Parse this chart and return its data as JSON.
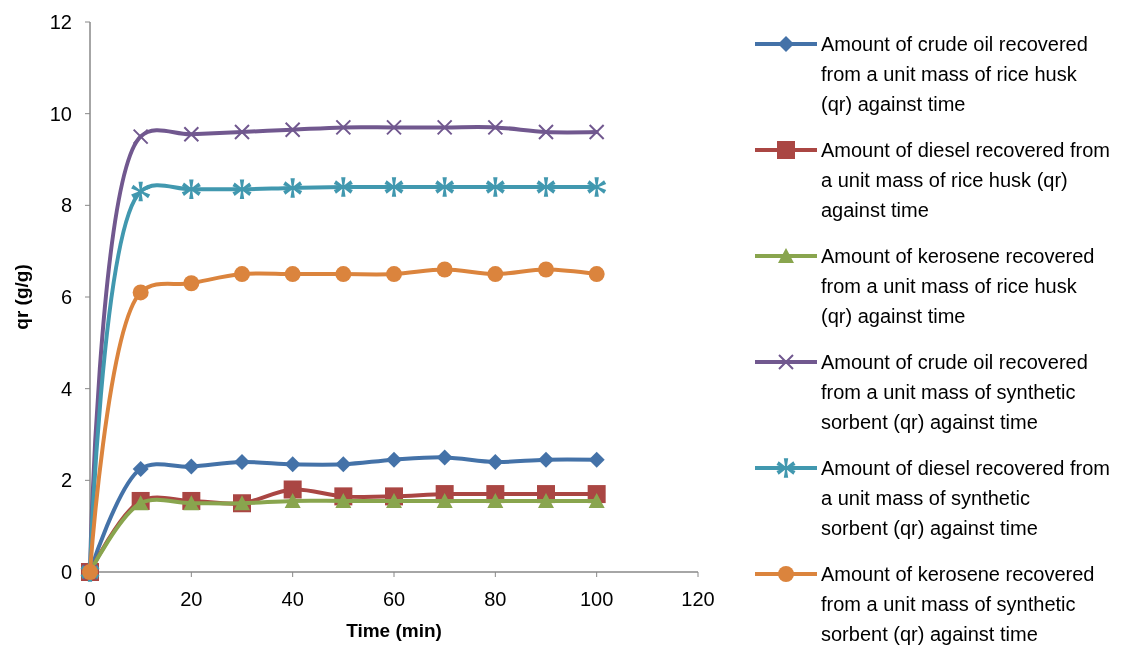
{
  "chart_data": {
    "type": "line",
    "xlabel": "Time (min)",
    "ylabel": "qr (g/g)",
    "x": [
      0,
      10,
      20,
      30,
      40,
      50,
      60,
      70,
      80,
      90,
      100
    ],
    "xlim": [
      0,
      120
    ],
    "xticks": [
      0,
      20,
      40,
      60,
      80,
      100,
      120
    ],
    "ylim": [
      0,
      12
    ],
    "yticks": [
      0,
      2,
      4,
      6,
      8,
      10,
      12
    ],
    "grid": false,
    "legend": "right",
    "series": [
      {
        "name": "Amount of crude oil recovered from a unit mass of rice husk (qr) against time",
        "color": "#4472a8",
        "marker": "diamond",
        "values": [
          0,
          2.25,
          2.3,
          2.4,
          2.35,
          2.35,
          2.45,
          2.5,
          2.4,
          2.45,
          2.45
        ]
      },
      {
        "name": "Amount of diesel recovered from a unit mass of rice husk (qr) against time",
        "color": "#aa4643",
        "marker": "square",
        "values": [
          0,
          1.55,
          1.55,
          1.5,
          1.8,
          1.65,
          1.65,
          1.7,
          1.7,
          1.7,
          1.7
        ]
      },
      {
        "name": "Amount of kerosene recovered from a unit mass of rice husk (qr) against time",
        "color": "#89a54e",
        "marker": "triangle",
        "values": [
          0,
          1.5,
          1.5,
          1.5,
          1.55,
          1.55,
          1.55,
          1.55,
          1.55,
          1.55,
          1.55
        ]
      },
      {
        "name": "Amount of crude oil recovered from a unit mass of synthetic sorbent (qr) against time",
        "color": "#71588f",
        "marker": "cross",
        "values": [
          0,
          9.5,
          9.55,
          9.6,
          9.65,
          9.7,
          9.7,
          9.7,
          9.7,
          9.6,
          9.6
        ]
      },
      {
        "name": "Amount of diesel recovered from a unit mass of synthetic sorbent (qr) against time",
        "color": "#4198af",
        "marker": "star",
        "values": [
          0,
          8.3,
          8.35,
          8.35,
          8.38,
          8.4,
          8.4,
          8.4,
          8.4,
          8.4,
          8.4
        ]
      },
      {
        "name": "Amount of kerosene recovered from a unit mass of synthetic sorbent (qr) against time",
        "color": "#db843d",
        "marker": "circle",
        "values": [
          0,
          6.1,
          6.3,
          6.5,
          6.5,
          6.5,
          6.5,
          6.6,
          6.5,
          6.6,
          6.5
        ]
      }
    ]
  }
}
